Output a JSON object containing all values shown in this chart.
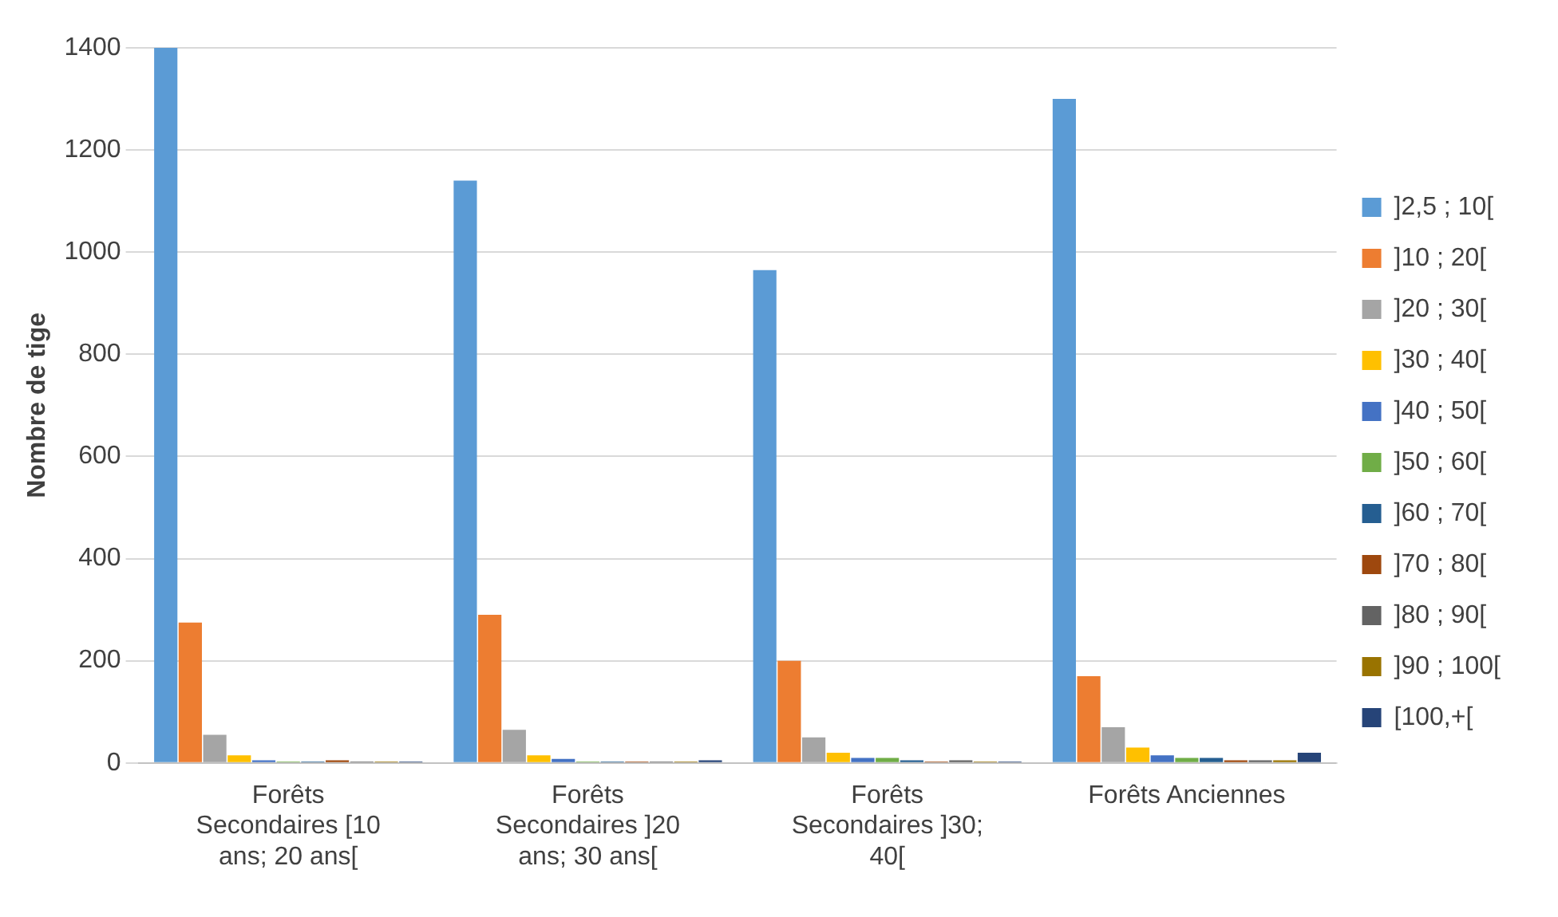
{
  "chart_data": {
    "type": "bar",
    "ylabel": "Nombre de tige",
    "categories": [
      [
        "Forêts",
        "Secondaires [10",
        "ans; 20 ans["
      ],
      [
        "Forêts",
        "Secondaires ]20",
        "ans; 30 ans["
      ],
      [
        "Forêts",
        "Secondaires ]30;",
        "40["
      ],
      "Forêts Anciennes"
    ],
    "series": [
      {
        "name": "]2,5 ; 10[",
        "color": "#5b9bd5",
        "values": [
          1400,
          1140,
          965,
          1300
        ]
      },
      {
        "name": "]10 ; 20[",
        "color": "#ed7d31",
        "values": [
          275,
          290,
          200,
          170
        ]
      },
      {
        "name": "]20 ; 30[",
        "color": "#a5a5a5",
        "values": [
          55,
          65,
          50,
          70
        ]
      },
      {
        "name": "]30 ; 40[",
        "color": "#ffc000",
        "values": [
          15,
          15,
          20,
          30
        ]
      },
      {
        "name": "]40 ; 50[",
        "color": "#4472c4",
        "values": [
          5,
          8,
          10,
          15
        ]
      },
      {
        "name": "]50 ; 60[",
        "color": "#70ad47",
        "values": [
          3,
          3,
          10,
          10
        ]
      },
      {
        "name": "]60 ; 70[",
        "color": "#255e91",
        "values": [
          3,
          3,
          5,
          10
        ]
      },
      {
        "name": "]70 ; 80[",
        "color": "#9e480e",
        "values": [
          5,
          3,
          3,
          5
        ]
      },
      {
        "name": "]80 ; 90[",
        "color": "#636363",
        "values": [
          3,
          3,
          5,
          5
        ]
      },
      {
        "name": "]90 ; 100[",
        "color": "#997300",
        "values": [
          3,
          3,
          3,
          5
        ]
      },
      {
        "name": "[100,+[",
        "color": "#264478",
        "values": [
          3,
          5,
          3,
          20
        ]
      }
    ],
    "ylim": [
      0,
      1400
    ],
    "yticks": [
      0,
      200,
      400,
      600,
      800,
      1000,
      1200,
      1400
    ],
    "grid": "y",
    "legend": "right"
  }
}
